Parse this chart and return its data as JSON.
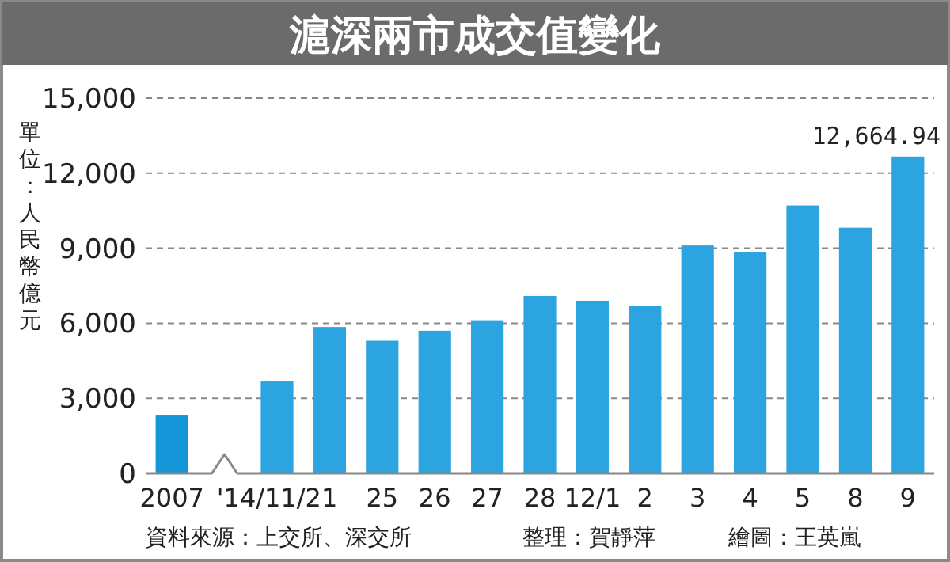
{
  "chart_data": {
    "type": "bar",
    "title": "滬深兩市成交值變化",
    "ylabel": "單位：人民幣億元",
    "annotations": [
      "資料來源：上交所、深交所",
      "整理：賀靜萍",
      "繪圖：王英嵐"
    ],
    "categories": [
      "2007",
      null,
      "'14/11/21",
      null,
      "25",
      "26",
      "27",
      "28",
      "12/1",
      "2",
      "3",
      "4",
      "5",
      "8",
      "9"
    ],
    "values": [
      2340,
      null,
      3700,
      5850,
      5300,
      5700,
      6120,
      7090,
      6900,
      6710,
      9110,
      8860,
      10710,
      9820,
      12664.94
    ],
    "colors": [
      "#1596d8",
      null,
      "#2ba4e0",
      "#2ba4e0",
      "#2ba4e0",
      "#2ba4e0",
      "#2ba4e0",
      "#2ba4e0",
      "#2ba4e0",
      "#2ba4e0",
      "#2ba4e0",
      "#2ba4e0",
      "#2ba4e0",
      "#2ba4e0",
      "#2ba4e0"
    ],
    "value_labels": [
      null,
      null,
      null,
      null,
      null,
      null,
      null,
      null,
      null,
      null,
      null,
      null,
      null,
      null,
      "12,664.94"
    ],
    "ylim": [
      0,
      15000
    ],
    "yticks": [
      {
        "value": 0,
        "label": "0"
      },
      {
        "value": 3000,
        "label": "3,000"
      },
      {
        "value": 6000,
        "label": "6,000"
      },
      {
        "value": 9000,
        "label": "9,000"
      },
      {
        "value": 12000,
        "label": "12,000"
      },
      {
        "value": 15000,
        "label": "15,000"
      }
    ],
    "grid": "y"
  }
}
